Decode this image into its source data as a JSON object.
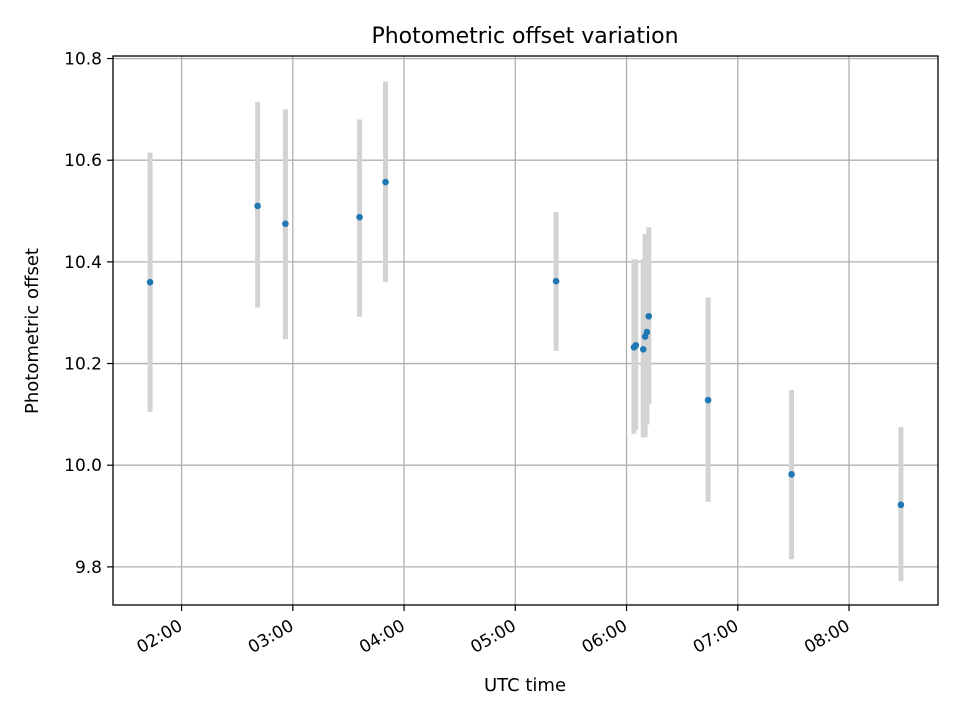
{
  "chart_data": {
    "type": "scatter",
    "title": "Photometric offset variation",
    "xlabel": "UTC time",
    "ylabel": "Photometric offset",
    "x_type": "time",
    "xlim": [
      "01:23",
      "08:48"
    ],
    "ylim": [
      9.725,
      10.805
    ],
    "x_ticks": [
      "02:00",
      "03:00",
      "04:00",
      "05:00",
      "06:00",
      "07:00",
      "08:00"
    ],
    "y_ticks": [
      9.8,
      10.0,
      10.2,
      10.4,
      10.6,
      10.8
    ],
    "y_tick_labels": [
      "9.8",
      "10.0",
      "10.2",
      "10.4",
      "10.6",
      "10.8"
    ],
    "grid": true,
    "colors": {
      "point": "#1f77b4",
      "errorbar": "#d3d3d3",
      "grid": "#b0b0b0",
      "axes": "#000000"
    },
    "series": [
      {
        "points": [
          {
            "x": "01:43",
            "y": 10.36,
            "yerr_low": 10.105,
            "yerr_high": 10.615
          },
          {
            "x": "02:41",
            "y": 10.51,
            "yerr_low": 10.31,
            "yerr_high": 10.715
          },
          {
            "x": "02:56",
            "y": 10.475,
            "yerr_low": 10.248,
            "yerr_high": 10.7
          },
          {
            "x": "03:36",
            "y": 10.488,
            "yerr_low": 10.292,
            "yerr_high": 10.68
          },
          {
            "x": "03:50",
            "y": 10.557,
            "yerr_low": 10.36,
            "yerr_high": 10.755
          },
          {
            "x": "05:22",
            "y": 10.362,
            "yerr_low": 10.225,
            "yerr_high": 10.498
          },
          {
            "x": "06:04",
            "y": 10.232,
            "yerr_low": 10.062,
            "yerr_high": 10.405
          },
          {
            "x": "06:05",
            "y": 10.236,
            "yerr_low": 10.07,
            "yerr_high": 10.405
          },
          {
            "x": "06:09",
            "y": 10.228,
            "yerr_low": 10.055,
            "yerr_high": 10.405
          },
          {
            "x": "06:10",
            "y": 10.253,
            "yerr_low": 10.055,
            "yerr_high": 10.455
          },
          {
            "x": "06:11",
            "y": 10.262,
            "yerr_low": 10.08,
            "yerr_high": 10.44
          },
          {
            "x": "06:12",
            "y": 10.293,
            "yerr_low": 10.12,
            "yerr_high": 10.468
          },
          {
            "x": "06:44",
            "y": 10.128,
            "yerr_low": 9.928,
            "yerr_high": 10.33
          },
          {
            "x": "07:29",
            "y": 9.982,
            "yerr_low": 9.815,
            "yerr_high": 10.148
          },
          {
            "x": "08:28",
            "y": 9.922,
            "yerr_low": 9.772,
            "yerr_high": 10.075
          }
        ]
      }
    ]
  }
}
